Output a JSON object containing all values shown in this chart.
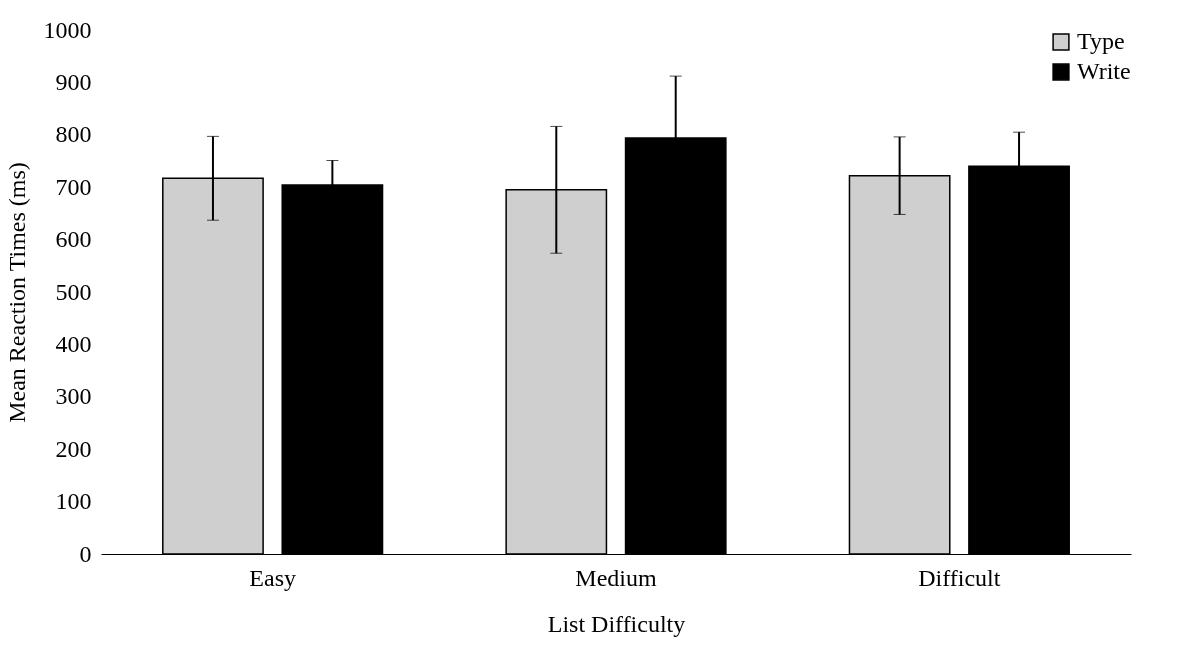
{
  "chart_data": {
    "type": "bar",
    "xlabel": "List Difficulty",
    "ylabel": "Mean Reaction Times (ms)",
    "categories": [
      "Easy",
      "Medium",
      "Difficult"
    ],
    "series": [
      {
        "name": "Type",
        "color": "#d0cfd0",
        "values": [
          717,
          695,
          722
        ],
        "errors": [
          80,
          121,
          74
        ]
      },
      {
        "name": "Write",
        "color": "#000000",
        "values": [
          704,
          794,
          740
        ],
        "errors": [
          47,
          118,
          65
        ]
      }
    ],
    "ylim": [
      0,
      1000
    ],
    "yticks": [
      0,
      100,
      200,
      300,
      400,
      500,
      600,
      700,
      800,
      900,
      1000
    ],
    "grid": false,
    "legend": "top right"
  }
}
